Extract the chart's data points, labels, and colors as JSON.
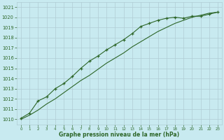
{
  "x": [
    0,
    1,
    2,
    3,
    4,
    5,
    6,
    7,
    8,
    9,
    10,
    11,
    12,
    13,
    14,
    15,
    16,
    17,
    18,
    19,
    20,
    21,
    22,
    23
  ],
  "line_marked": [
    1010.1,
    1010.6,
    1011.8,
    1012.2,
    1013.0,
    1013.5,
    1014.2,
    1015.0,
    1015.7,
    1016.2,
    1016.8,
    1017.3,
    1017.8,
    1018.4,
    1019.1,
    1019.4,
    1019.7,
    1019.9,
    1020.0,
    1019.9,
    1020.1,
    1020.1,
    1020.3,
    1020.5
  ],
  "line_smooth": [
    1010.0,
    1010.4,
    1010.9,
    1011.5,
    1012.0,
    1012.6,
    1013.2,
    1013.8,
    1014.3,
    1014.9,
    1015.5,
    1016.0,
    1016.5,
    1017.1,
    1017.6,
    1018.1,
    1018.6,
    1019.0,
    1019.4,
    1019.7,
    1020.0,
    1020.2,
    1020.4,
    1020.5
  ],
  "ylim": [
    1009.5,
    1021.5
  ],
  "xlim": [
    -0.5,
    23.5
  ],
  "yticks": [
    1010,
    1011,
    1012,
    1013,
    1014,
    1015,
    1016,
    1017,
    1018,
    1019,
    1020,
    1021
  ],
  "xticks": [
    0,
    1,
    2,
    3,
    4,
    5,
    6,
    7,
    8,
    9,
    10,
    11,
    12,
    13,
    14,
    15,
    16,
    17,
    18,
    19,
    20,
    21,
    22,
    23
  ],
  "xlabel": "Graphe pression niveau de la mer (hPa)",
  "bg_color": "#c8eaf0",
  "grid_color": "#b0ccd4",
  "line_color": "#2d6628",
  "marker": "+"
}
